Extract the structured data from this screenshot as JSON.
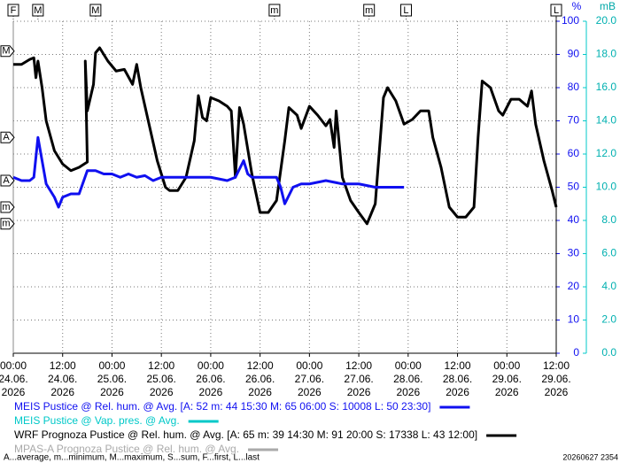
{
  "chart_data": {
    "type": "line",
    "y_unit": "%",
    "y2_unit": "mB",
    "xlim": [
      0,
      132
    ],
    "xticks": [
      {
        "value": 0,
        "label": [
          "00:00",
          "24.06.",
          "2026"
        ]
      },
      {
        "value": 12,
        "label": [
          "12:00",
          "24.06.",
          "2026"
        ]
      },
      {
        "value": 24,
        "label": [
          "00:00",
          "25.06.",
          "2026"
        ]
      },
      {
        "value": 36,
        "label": [
          "12:00",
          "25.06.",
          "2026"
        ]
      },
      {
        "value": 48,
        "label": [
          "00:00",
          "26.06.",
          "2026"
        ]
      },
      {
        "value": 60,
        "label": [
          "12:00",
          "26.06.",
          "2026"
        ]
      },
      {
        "value": 72,
        "label": [
          "00:00",
          "27.06.",
          "2026"
        ]
      },
      {
        "value": 84,
        "label": [
          "12:00",
          "27.06.",
          "2026"
        ]
      },
      {
        "value": 96,
        "label": [
          "00:00",
          "28.06.",
          "2026"
        ]
      },
      {
        "value": 108,
        "label": [
          "12:00",
          "28.06.",
          "2026"
        ]
      },
      {
        "value": 120,
        "label": [
          "00:00",
          "29.06.",
          "2026"
        ]
      },
      {
        "value": 132,
        "label": [
          "12:00",
          "29.06.",
          "2026"
        ]
      }
    ],
    "ylim": [
      0,
      100
    ],
    "yticks": [
      0,
      10,
      20,
      30,
      40,
      50,
      60,
      70,
      80,
      90,
      100
    ],
    "y2lim": [
      0,
      20
    ],
    "y2ticks": [
      {
        "value": 0,
        "label": "0.0"
      },
      {
        "value": 2,
        "label": "2.0"
      },
      {
        "value": 4,
        "label": "4.0"
      },
      {
        "value": 6,
        "label": "6.0"
      },
      {
        "value": 8,
        "label": "8.0"
      },
      {
        "value": 10,
        "label": "10.0"
      },
      {
        "value": 12,
        "label": "12.0"
      },
      {
        "value": 14,
        "label": "14.0"
      },
      {
        "value": 16,
        "label": "16.0"
      },
      {
        "value": 18,
        "label": "18.0"
      },
      {
        "value": 20,
        "label": "20.0"
      }
    ],
    "grid": true,
    "series": [
      {
        "name": "WRF Prognoza Pustice @ Rel. hum. @ Avg.",
        "color": "#000000",
        "x": [
          0,
          2,
          4,
          5,
          5.5,
          6,
          7,
          8,
          10,
          12,
          14,
          16,
          18,
          17.5,
          18,
          19.5,
          20,
          21,
          23,
          25,
          27,
          29,
          30,
          31,
          33,
          35,
          37,
          38,
          40,
          42,
          44,
          45,
          46,
          47,
          48,
          50,
          52,
          53,
          54,
          55,
          56,
          58,
          60,
          62,
          64,
          66,
          67,
          69,
          70,
          72,
          74,
          76,
          77,
          78,
          78.5,
          80,
          82,
          84,
          86,
          88,
          90,
          91,
          93,
          95,
          97,
          99,
          101,
          102,
          104,
          106,
          108,
          110,
          112,
          113,
          114,
          116,
          118,
          119,
          121,
          123,
          125,
          126,
          127,
          129,
          131,
          132
        ],
        "values": [
          87,
          87,
          88.5,
          89,
          83,
          88,
          80,
          70,
          61,
          57,
          55,
          56,
          57.6,
          88,
          73,
          81,
          90.5,
          92,
          88,
          85,
          85.5,
          81,
          87,
          80,
          69,
          58,
          50,
          49,
          49,
          53,
          64,
          77.6,
          71,
          70,
          77,
          76,
          74.4,
          73,
          53,
          74,
          69,
          54,
          42.4,
          42.4,
          46,
          64,
          74,
          71.7,
          67.7,
          74.4,
          71.7,
          68.5,
          70.4,
          62,
          73,
          53,
          46,
          42.4,
          39,
          45,
          77,
          80,
          76,
          69,
          70.4,
          73,
          73,
          65,
          56,
          44,
          41,
          41,
          44,
          65,
          82,
          80,
          73,
          71.7,
          76.5,
          76.5,
          74.4,
          79,
          69,
          58,
          49,
          44
        ]
      },
      {
        "name": "MEIS Pustice @ Rel. hum. @ Avg.",
        "color": "#1010f0",
        "x": [
          0,
          2,
          4,
          5,
          6,
          7,
          8,
          10,
          11,
          12,
          14,
          16,
          18,
          20,
          22,
          24,
          26,
          28,
          30,
          32,
          34,
          36,
          40,
          44,
          48,
          52,
          54,
          56,
          57,
          58,
          60,
          62,
          64,
          65,
          66,
          68,
          70,
          72,
          76,
          80,
          84,
          88,
          92,
          95
        ],
        "values": [
          53,
          52,
          52,
          53,
          65,
          58,
          51,
          47,
          44,
          47,
          48,
          48,
          55,
          55,
          54,
          54,
          53,
          54,
          53,
          53.5,
          52,
          53,
          53,
          53,
          53,
          52,
          53,
          58,
          54,
          53,
          53,
          53,
          53,
          50,
          45,
          50,
          51,
          51,
          52,
          51,
          51,
          50,
          50,
          50
        ]
      }
    ],
    "legend": [
      {
        "label": "MEIS Pustice @ Rel. hum. @ Avg. [A: 52 m: 44 15:30 M: 65 06:00 S: 10008 L: 50 23:30]",
        "color": "#1010f0"
      },
      {
        "label": "MEIS Pustice @ Vap. pres. @ Avg.",
        "color": "#00c8c8"
      },
      {
        "label": "WRF Prognoza Pustice @ Rel. hum. @ Avg. [A: 65 m: 39 14:30 M: 91 20:00 S: 17338 L: 43 12:00]",
        "color": "#000000"
      },
      {
        "label": "MPAS-A Prognoza Pustice @ Rel. hum. @ Avg.",
        "color": "#aaaaaa"
      }
    ],
    "top_markers": [
      {
        "label": "F",
        "x": 0
      },
      {
        "label": "M",
        "x": 6
      },
      {
        "label": "M",
        "x": 20
      },
      {
        "label": "m",
        "x": 63.5
      },
      {
        "label": "m",
        "x": 86.5
      },
      {
        "label": "L",
        "x": 95.5
      },
      {
        "label": "L",
        "x": 132
      }
    ],
    "left_markers": [
      {
        "label": "M",
        "y": 91
      },
      {
        "label": "A",
        "y": 65
      },
      {
        "label": "A",
        "y": 52
      },
      {
        "label": "m",
        "y": 44
      },
      {
        "label": "m",
        "y": 39
      }
    ],
    "footnote": "A...average, m...minimum, M...maximum, S...sum, F...first, L...last",
    "timestamp": "20260627 2354"
  }
}
